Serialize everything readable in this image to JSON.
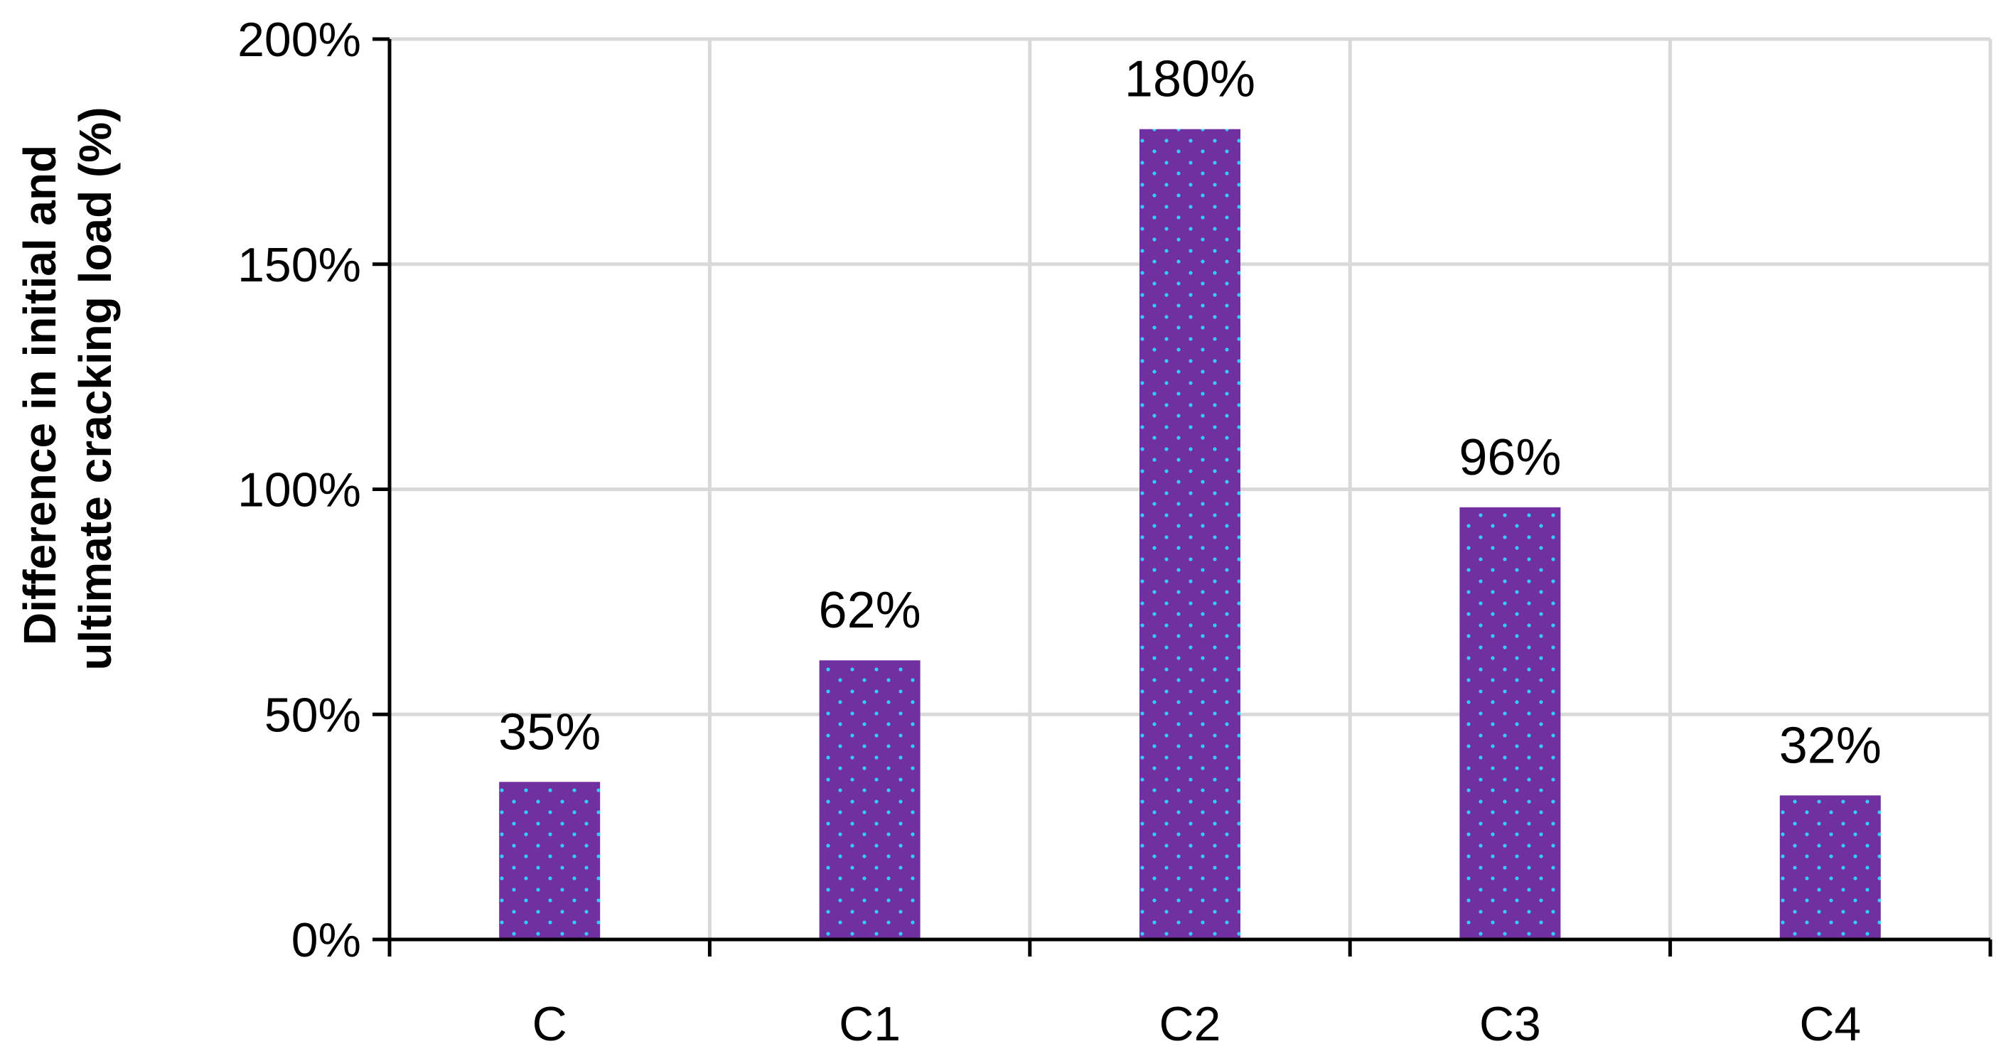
{
  "chart_data": {
    "type": "bar",
    "categories": [
      "C",
      "C1",
      "C2",
      "C3",
      "C4"
    ],
    "values": [
      35,
      62,
      180,
      96,
      32
    ],
    "data_labels": [
      "35%",
      "62%",
      "180%",
      "96%",
      "32%"
    ],
    "title": "",
    "xlabel": "",
    "ylabel_lines": [
      "Difference in initial and",
      "ultimate cracking load (%)"
    ],
    "ylim": [
      0,
      200
    ],
    "yticks": [
      0,
      50,
      100,
      150,
      200
    ],
    "ytick_labels": [
      "0%",
      "50%",
      "100%",
      "150%",
      "200%"
    ],
    "grid": true,
    "legend": "none",
    "colors": {
      "bar_fill": "#7030A0",
      "bar_dots": "#33CCFF",
      "grid": "#D9D9D9",
      "axis": "#000000"
    }
  }
}
